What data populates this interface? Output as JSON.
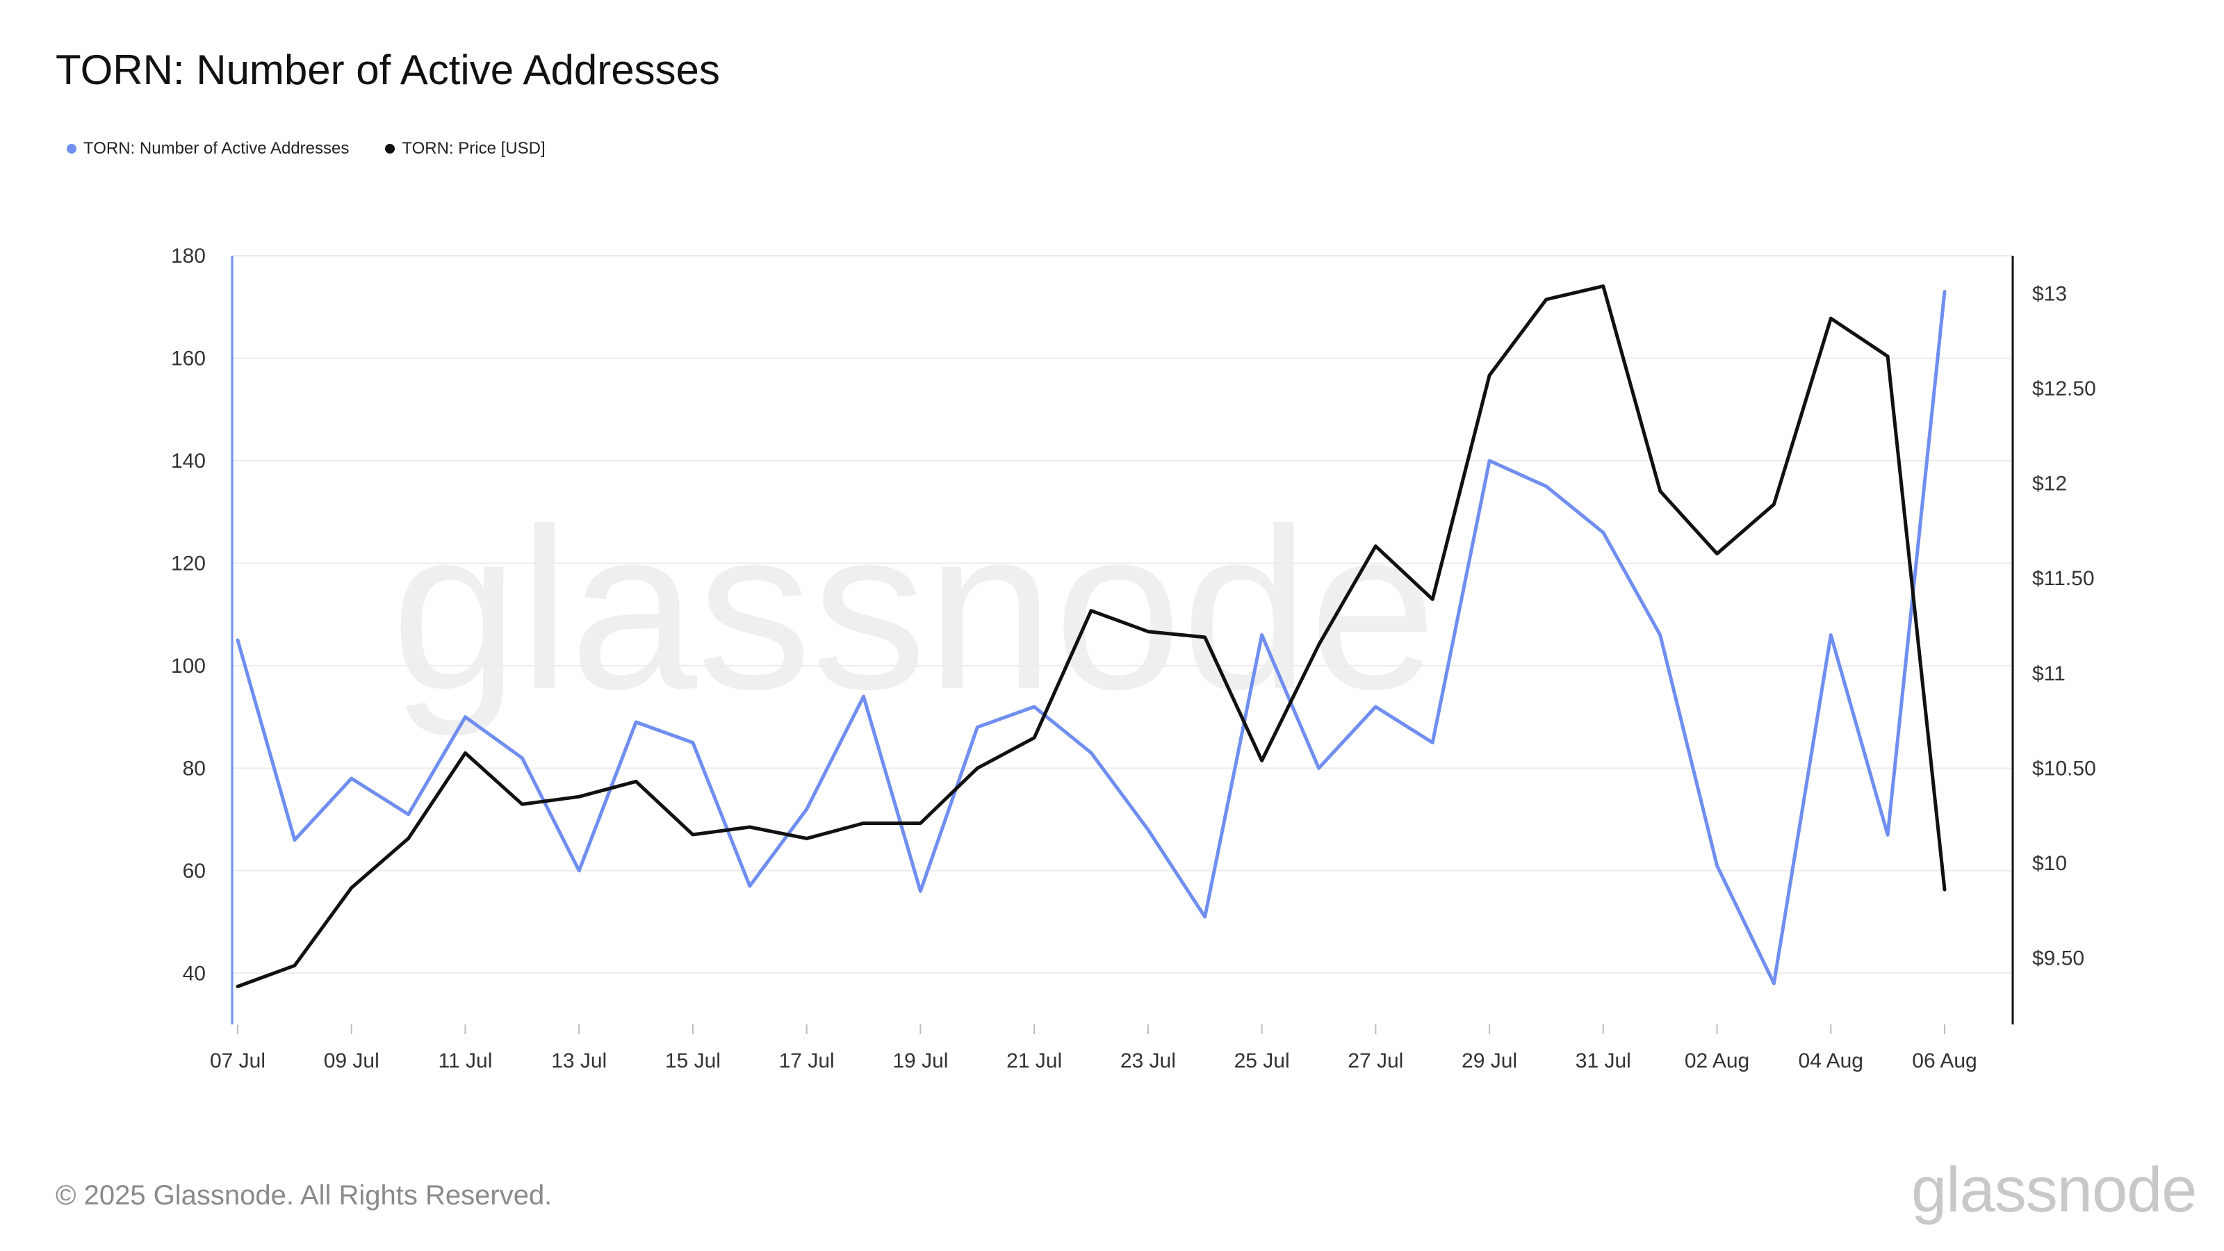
{
  "title": "TORN: Number of Active Addresses",
  "footer": "© 2025 Glassnode. All Rights Reserved.",
  "brand": "glassnode",
  "colors": {
    "active_addresses": "#6f8ef0",
    "price": "#111111",
    "grid": "#ececec",
    "watermark": "#efefef"
  },
  "chart_data": {
    "type": "line",
    "title": "TORN: Number of Active Addresses",
    "x": [
      "07 Jul",
      "08 Jul",
      "09 Jul",
      "10 Jul",
      "11 Jul",
      "12 Jul",
      "13 Jul",
      "14 Jul",
      "15 Jul",
      "16 Jul",
      "17 Jul",
      "18 Jul",
      "19 Jul",
      "20 Jul",
      "21 Jul",
      "22 Jul",
      "23 Jul",
      "24 Jul",
      "25 Jul",
      "26 Jul",
      "27 Jul",
      "28 Jul",
      "29 Jul",
      "30 Jul",
      "31 Jul",
      "01 Aug",
      "02 Aug",
      "03 Aug",
      "04 Aug",
      "05 Aug",
      "06 Aug"
    ],
    "x_tick_labels": [
      "07 Jul",
      "09 Jul",
      "11 Jul",
      "13 Jul",
      "15 Jul",
      "17 Jul",
      "19 Jul",
      "21 Jul",
      "23 Jul",
      "25 Jul",
      "27 Jul",
      "29 Jul",
      "31 Jul",
      "02 Aug",
      "04 Aug",
      "06 Aug"
    ],
    "series": [
      {
        "name": "TORN: Number of Active Addresses",
        "axis": "left",
        "values": [
          105,
          66,
          78,
          71,
          90,
          82,
          60,
          89,
          85,
          57,
          72,
          94,
          56,
          88,
          92,
          83,
          68,
          51,
          106,
          80,
          92,
          85,
          140,
          135,
          126,
          106,
          61,
          38,
          106,
          67,
          173
        ]
      },
      {
        "name": "TORN: Price [USD]",
        "axis": "right",
        "values": [
          9.35,
          9.46,
          9.87,
          10.13,
          10.58,
          10.31,
          10.35,
          10.43,
          10.15,
          10.19,
          10.13,
          10.21,
          10.21,
          10.5,
          10.66,
          11.33,
          11.22,
          11.19,
          10.54,
          11.15,
          11.67,
          11.39,
          12.57,
          12.97,
          13.04,
          11.96,
          11.63,
          11.89,
          12.87,
          12.67,
          9.86
        ]
      }
    ],
    "y_left": {
      "ylim": [
        30,
        180
      ],
      "ticks": [
        40,
        60,
        80,
        100,
        120,
        140,
        160,
        180
      ]
    },
    "y_right": {
      "ylim": [
        9.15,
        13.2
      ],
      "ticks": [
        9.5,
        10,
        10.5,
        11,
        11.5,
        12,
        12.5,
        13
      ],
      "tick_labels": [
        "$9.50",
        "$10",
        "$10.50",
        "$11",
        "$11.50",
        "$12",
        "$12.50",
        "$13"
      ]
    },
    "grid": true,
    "legend_position": "top-left"
  }
}
